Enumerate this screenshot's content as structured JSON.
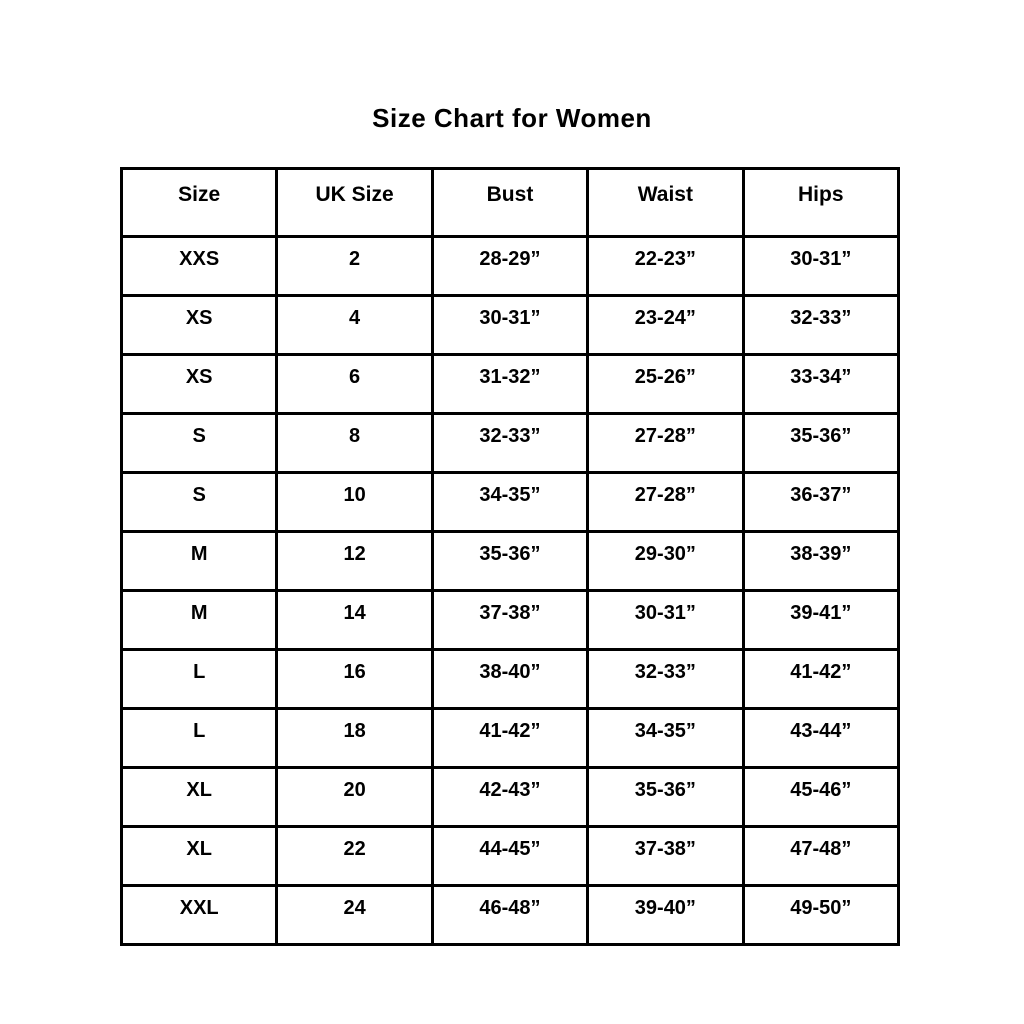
{
  "page": {
    "title": "Size Chart for Women",
    "background_color": "#ffffff",
    "text_color": "#000000",
    "border_color": "#000000"
  },
  "table": {
    "columns": [
      "Size",
      "UK Size",
      "Bust",
      "Waist",
      "Hips"
    ],
    "rows": [
      [
        "XXS",
        "2",
        "28-29”",
        "22-23”",
        "30-31”"
      ],
      [
        "XS",
        "4",
        "30-31”",
        "23-24”",
        "32-33”"
      ],
      [
        "XS",
        "6",
        "31-32”",
        "25-26”",
        "33-34”"
      ],
      [
        "S",
        "8",
        "32-33”",
        "27-28”",
        "35-36”"
      ],
      [
        "S",
        "10",
        "34-35”",
        "27-28”",
        "36-37”"
      ],
      [
        "M",
        "12",
        "35-36”",
        "29-30”",
        "38-39”"
      ],
      [
        "M",
        "14",
        "37-38”",
        "30-31”",
        "39-41”"
      ],
      [
        "L",
        "16",
        "38-40”",
        "32-33”",
        "41-42”"
      ],
      [
        "L",
        "18",
        "41-42”",
        "34-35”",
        "43-44”"
      ],
      [
        "XL",
        "20",
        "42-43”",
        "35-36”",
        "45-46”"
      ],
      [
        "XL",
        "22",
        "44-45”",
        "37-38”",
        "47-48”"
      ],
      [
        "XXL",
        "24",
        "46-48”",
        "39-40”",
        "49-50”"
      ]
    ]
  }
}
